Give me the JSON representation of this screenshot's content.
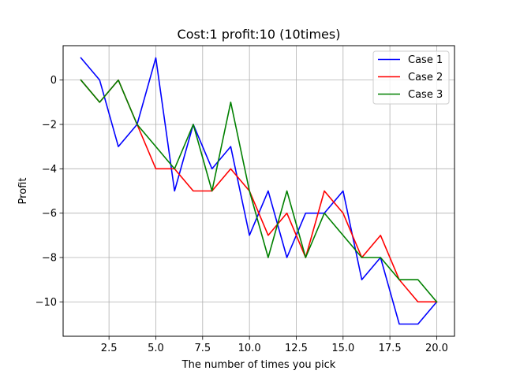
{
  "chart_data": {
    "type": "line",
    "title": "Cost:1 profit:10 (10times)",
    "xlabel": "The number of times you pick",
    "ylabel": "Profit",
    "x": [
      1,
      2,
      3,
      4,
      5,
      6,
      7,
      8,
      9,
      10,
      11,
      12,
      13,
      14,
      15,
      16,
      17,
      18,
      19,
      20
    ],
    "xlim": [
      0.05,
      20.95
    ],
    "ylim": [
      -11.55,
      1.55
    ],
    "xticks": [
      2.5,
      5.0,
      7.5,
      10.0,
      12.5,
      15.0,
      17.5,
      20.0
    ],
    "xtick_labels": [
      "2.5",
      "5.0",
      "7.5",
      "10.0",
      "12.5",
      "15.0",
      "17.5",
      "20.0"
    ],
    "yticks": [
      0,
      -2,
      -4,
      -6,
      -8,
      -10
    ],
    "ytick_labels": [
      "0",
      "−2",
      "−4",
      "−6",
      "−8",
      "−10"
    ],
    "grid": true,
    "legend_position": "top-right",
    "series": [
      {
        "name": "Case 1",
        "color": "#0000ff",
        "values": [
          1,
          0,
          -3,
          -2,
          1,
          -5,
          -2,
          -4,
          -3,
          -7,
          -5,
          -8,
          -6,
          -6,
          -5,
          -9,
          -8,
          -11,
          -11,
          -10
        ]
      },
      {
        "name": "Case 2",
        "color": "#ff0000",
        "values": [
          0,
          -1,
          0,
          -2,
          -4,
          -4,
          -5,
          -5,
          -4,
          -5,
          -7,
          -6,
          -8,
          -5,
          -6,
          -8,
          -7,
          -9,
          -10,
          -10
        ]
      },
      {
        "name": "Case 3",
        "color": "#008000",
        "values": [
          0,
          -1,
          0,
          -2,
          -3,
          -4,
          -2,
          -5,
          -1,
          -5,
          -8,
          -5,
          -8,
          -6,
          -7,
          -8,
          -8,
          -9,
          -9,
          -10
        ]
      }
    ]
  }
}
